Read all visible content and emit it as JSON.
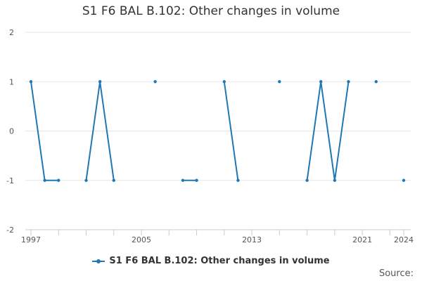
{
  "chart_data": {
    "type": "line",
    "title": "S1 F6 BAL B.102: Other changes in volume",
    "xlabel": "",
    "ylabel": "",
    "x_tick_labels": [
      "1997",
      "2005",
      "2013",
      "2021",
      "2024"
    ],
    "x_ticks": [
      1997,
      2005,
      2013,
      2021,
      2024
    ],
    "x_minor_ticks": [
      1997,
      1999,
      2001,
      2003,
      2005,
      2007,
      2009,
      2011,
      2013,
      2015,
      2017,
      2019,
      2021,
      2023,
      2024
    ],
    "xlim": [
      1997,
      2024
    ],
    "ylim": [
      -2,
      2
    ],
    "y_ticks": [
      -2,
      -1,
      0,
      1,
      2
    ],
    "grid": "horizontal",
    "legend_position": "bottom",
    "series": [
      {
        "name": "S1 F6 BAL B.102: Other changes in volume",
        "color": "#1f77b4",
        "points": [
          {
            "x": 1997,
            "y": 1
          },
          {
            "x": 1998,
            "y": -1
          },
          {
            "x": 1999,
            "y": -1
          },
          {
            "x": 2000,
            "y": null
          },
          {
            "x": 2001,
            "y": -1
          },
          {
            "x": 2002,
            "y": 1
          },
          {
            "x": 2003,
            "y": -1
          },
          {
            "x": 2004,
            "y": null
          },
          {
            "x": 2005,
            "y": null
          },
          {
            "x": 2006,
            "y": 1
          },
          {
            "x": 2007,
            "y": null
          },
          {
            "x": 2008,
            "y": -1
          },
          {
            "x": 2009,
            "y": -1
          },
          {
            "x": 2010,
            "y": null
          },
          {
            "x": 2011,
            "y": 1
          },
          {
            "x": 2012,
            "y": -1
          },
          {
            "x": 2013,
            "y": null
          },
          {
            "x": 2014,
            "y": null
          },
          {
            "x": 2015,
            "y": 1
          },
          {
            "x": 2016,
            "y": null
          },
          {
            "x": 2017,
            "y": -1
          },
          {
            "x": 2018,
            "y": 1
          },
          {
            "x": 2019,
            "y": -1
          },
          {
            "x": 2020,
            "y": 1
          },
          {
            "x": 2021,
            "y": null
          },
          {
            "x": 2022,
            "y": 1
          },
          {
            "x": 2023,
            "y": null
          },
          {
            "x": 2024,
            "y": -1
          }
        ]
      }
    ]
  },
  "footer": {
    "source_label": "Source:"
  }
}
